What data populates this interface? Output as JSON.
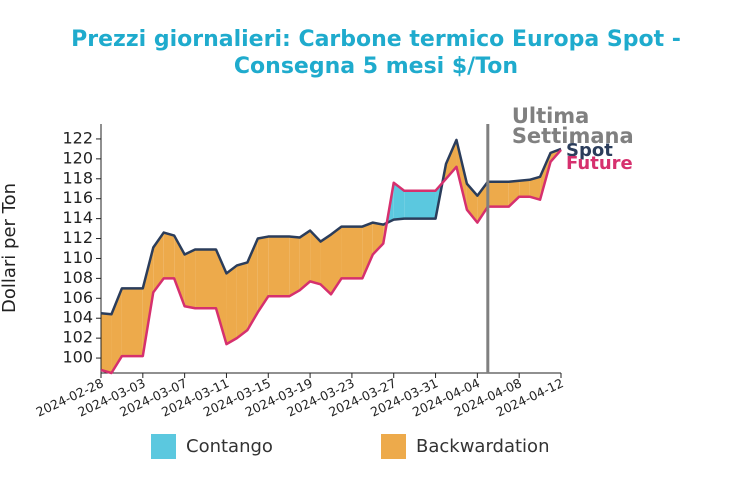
{
  "chart_data": {
    "type": "line",
    "title": [
      "Prezzi giornalieri: Carbone termico Europa Spot -",
      "Consegna 5 mesi $/Ton"
    ],
    "ylabel": "Dollari per Ton",
    "x": [
      "2024-02-28",
      "2024-02-29",
      "2024-03-01",
      "2024-03-03",
      "2024-03-04",
      "2024-03-05",
      "2024-03-06",
      "2024-03-07",
      "2024-03-08",
      "2024-03-10",
      "2024-03-11",
      "2024-03-12",
      "2024-03-13",
      "2024-03-14",
      "2024-03-15",
      "2024-03-17",
      "2024-03-18",
      "2024-03-19",
      "2024-03-20",
      "2024-03-21",
      "2024-03-22",
      "2024-03-24",
      "2024-03-25",
      "2024-03-26",
      "2024-03-27",
      "2024-03-28",
      "2024-03-31",
      "2024-04-01",
      "2024-04-02",
      "2024-04-03",
      "2024-04-04",
      "2024-04-05",
      "2024-04-07",
      "2024-04-08",
      "2024-04-09",
      "2024-04-10",
      "2024-04-11",
      "2024-04-12"
    ],
    "series": [
      {
        "name": "Spot",
        "color": "#2b3d5b",
        "values": [
          104.5,
          104.4,
          107,
          107,
          111.1,
          112.6,
          112.3,
          110.4,
          110.9,
          110.9,
          108.5,
          109.3,
          109.6,
          112,
          112.2,
          112.2,
          112.1,
          112.8,
          111.7,
          112.4,
          113.2,
          113.2,
          113.6,
          113.4,
          113.9,
          114,
          114,
          119.5,
          121.9,
          117.5,
          116.3,
          117.7,
          117.7,
          117.8,
          117.9,
          118.2,
          120.6,
          121
        ]
      },
      {
        "name": "Future",
        "color": "#d6306e",
        "values": [
          98.8,
          98.5,
          100.2,
          100.2,
          106.6,
          108,
          108,
          105.2,
          105,
          105,
          101.4,
          102,
          102.8,
          104.6,
          106.2,
          106.2,
          106.8,
          107.7,
          107.4,
          106.4,
          108,
          108,
          110.4,
          111.5,
          117.6,
          116.8,
          116.8,
          118,
          119.2,
          114.9,
          113.6,
          115.2,
          115.2,
          116.2,
          116.2,
          115.9,
          119.7,
          120.9
        ]
      }
    ],
    "fill_legend": [
      {
        "name": "Contango",
        "color": "#5bc8df"
      },
      {
        "name": "Backwardation",
        "color": "#edaa4b"
      }
    ],
    "vline": {
      "x": "2024-04-05",
      "label": [
        "Ultima",
        "Settimana"
      ],
      "color": "#808080"
    },
    "xlim": [
      "2024-02-28",
      "2024-04-12"
    ],
    "xticks": [
      "2024-02-28",
      "2024-03-03",
      "2024-03-07",
      "2024-03-11",
      "2024-03-15",
      "2024-03-19",
      "2024-03-23",
      "2024-03-27",
      "2024-03-31",
      "2024-04-04",
      "2024-04-08",
      "2024-04-12"
    ],
    "ylim": [
      98.5,
      123.5
    ],
    "yticks": [
      100,
      102,
      104,
      106,
      108,
      110,
      112,
      114,
      116,
      118,
      120,
      122
    ]
  }
}
